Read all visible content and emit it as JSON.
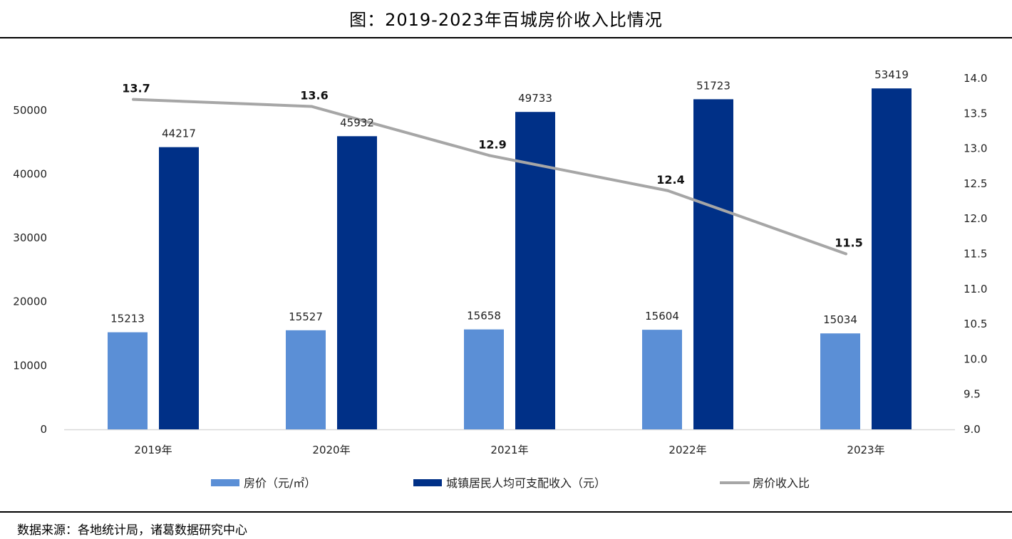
{
  "header": {
    "title": "图：2019-2023年百城房价收入比情况",
    "source": "数据来源：各地统计局，诸葛数据研究中心"
  },
  "chart_data": {
    "type": "bar",
    "title": "图：2019-2023年百城房价收入比情况",
    "categories": [
      "2019年",
      "2020年",
      "2021年",
      "2022年",
      "2023年"
    ],
    "series": [
      {
        "name": "房价（元/㎡）",
        "type": "bar",
        "axis": "left",
        "color": "#5b8fd6",
        "values": [
          15213,
          15527,
          15658,
          15604,
          15034
        ],
        "labels": [
          "15213",
          "15527",
          "15658",
          "15604",
          "15034"
        ]
      },
      {
        "name": "城镇居民人均可支配收入（元）",
        "type": "bar",
        "axis": "left",
        "color": "#003087",
        "values": [
          44217,
          45932,
          49733,
          51723,
          53419
        ],
        "labels": [
          "44217",
          "45932",
          "49733",
          "51723",
          "53419"
        ]
      },
      {
        "name": "房价收入比",
        "type": "line",
        "axis": "right",
        "color": "#a6a6a6",
        "values": [
          13.7,
          13.6,
          12.9,
          12.4,
          11.5
        ],
        "labels": [
          "13.7",
          "13.6",
          "12.9",
          "12.4",
          "11.5"
        ]
      }
    ],
    "y_left": {
      "ylim": [
        0,
        55000
      ],
      "ticks": [
        0,
        10000,
        20000,
        30000,
        40000,
        50000
      ],
      "tick_labels": [
        "0",
        "10000",
        "20000",
        "30000",
        "40000",
        "50000"
      ]
    },
    "y_right": {
      "ylim": [
        9.0,
        14.0
      ],
      "ticks": [
        9.0,
        9.5,
        10.0,
        10.5,
        11.0,
        11.5,
        12.0,
        12.5,
        13.0,
        13.5,
        14.0
      ],
      "tick_labels": [
        "9.0",
        "9.5",
        "10.0",
        "10.5",
        "11.0",
        "11.5",
        "12.0",
        "12.5",
        "13.0",
        "13.5",
        "14.0"
      ]
    },
    "grid": false,
    "legend_position": "bottom"
  }
}
